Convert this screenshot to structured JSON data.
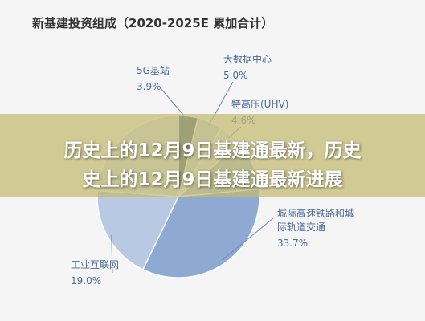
{
  "chart_data": {
    "type": "pie",
    "title": "新基建投资组成（2020-2025E  累加合计）",
    "categories": [
      "5G基站",
      "大数据中心",
      "特高压(UHV)",
      null,
      "城际高速铁路和城际轨道交通",
      "工业互联网",
      null
    ],
    "values": [
      3.9,
      5.0,
      4.6,
      10,
      33.7,
      19.0,
      23.8
    ],
    "value_labels": [
      "3.9%",
      "5.0%",
      "4.6%",
      null,
      "33.7%",
      "19.0%",
      null
    ],
    "colors": [
      "#3f5d8c",
      "#c8d4e7",
      "#dfe6f1",
      "#aabdd9",
      "#8eaad2",
      "#b8c9e3",
      "#d3ddec"
    ]
  },
  "overlay": {
    "lines": [
      "历史上的12月9日基建通最新，历史",
      "史上的12月9日基建通最新进展"
    ]
  }
}
